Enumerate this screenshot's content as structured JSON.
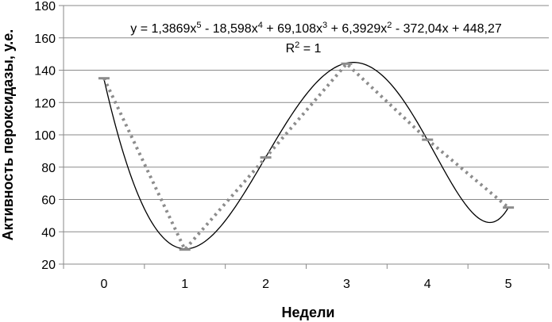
{
  "chart_data": {
    "type": "line",
    "xlabel": "Недели",
    "ylabel": "Активность пероксидазы, у.е.",
    "categories": [
      "0",
      "1",
      "2",
      "3",
      "4",
      "5"
    ],
    "ylim": [
      20,
      180
    ],
    "yticks": [
      20,
      40,
      60,
      80,
      100,
      120,
      140,
      160,
      180
    ],
    "grid": true,
    "series": [
      {
        "values": [
          135,
          29,
          86,
          144,
          97,
          55
        ],
        "style": "dotted",
        "color": "#8c8c8c"
      }
    ],
    "trendline": {
      "kind": "polynomial",
      "order": 5,
      "color": "#000000",
      "coefficients": [
        1.3869,
        -18.598,
        69.108,
        6.3929,
        -372.04,
        448.27
      ],
      "equation_parts": {
        "prefix": "y = 1,3869x",
        "e1": "5",
        "p2": " - 18,598x",
        "e2": "4",
        "p3": " + 69,108x",
        "e3": "3",
        "p4": " + 6,3929x",
        "e4": "2",
        "p5": " - 372,04x + 448,27"
      },
      "r2_parts": {
        "prefix": "R",
        "sup": "2",
        "suffix": " = 1"
      }
    }
  }
}
